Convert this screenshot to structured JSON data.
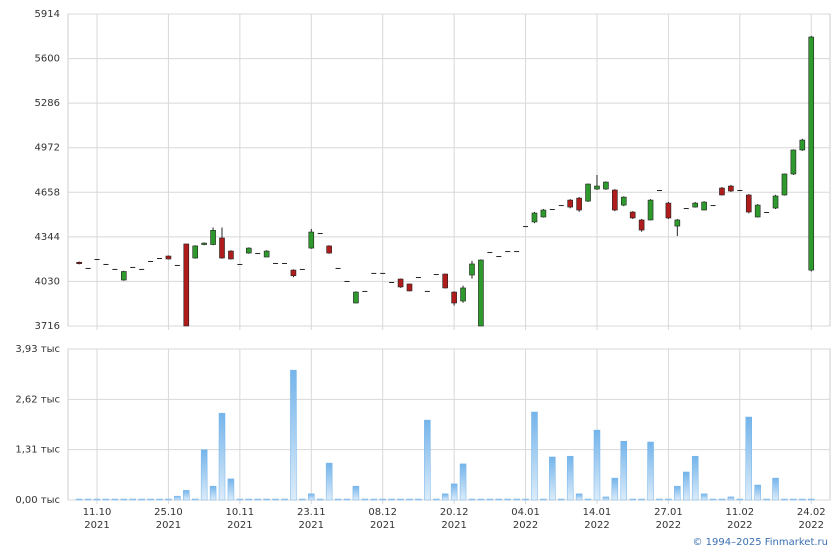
{
  "chart_data": {
    "type": "candlestick",
    "open": [
      4165,
      4125,
      4188,
      4153,
      4118,
      4040,
      4132,
      4118,
      4174,
      4195,
      4209,
      4146,
      4294,
      4195,
      4290,
      4290,
      4336,
      4244,
      4153,
      4230,
      4230,
      4202,
      4160,
      4160,
      4110,
      4118,
      4265,
      4371,
      4280,
      4125,
      4033,
      3878,
      3963,
      4090,
      4090,
      4026,
      4047,
      4012,
      4061,
      3963,
      4082,
      4082,
      3955,
      3892,
      4075,
      3716,
      4237,
      4209,
      4244,
      4244,
      4420,
      4449,
      4484,
      4540,
      4568,
      4603,
      4617,
      4596,
      4681,
      4681,
      4674,
      4568,
      4519,
      4463,
      4463,
      4674,
      4582,
      4420,
      4547,
      4554,
      4533,
      4568,
      4688,
      4702,
      4674,
      4639,
      4484,
      4519,
      4547,
      4639,
      4787,
      4956,
      4110
    ],
    "high": [
      4170,
      4125,
      4188,
      4153,
      4118,
      4105,
      4132,
      4118,
      4174,
      4195,
      4212,
      4146,
      4294,
      4285,
      4305,
      4410,
      4410,
      4250,
      4153,
      4270,
      4230,
      4250,
      4160,
      4160,
      4115,
      4118,
      4400,
      4371,
      4285,
      4125,
      4033,
      3960,
      3963,
      4090,
      4090,
      4026,
      4050,
      4015,
      4061,
      3963,
      4082,
      4085,
      3960,
      4000,
      4175,
      4185,
      4237,
      4209,
      4244,
      4244,
      4420,
      4520,
      4540,
      4540,
      4568,
      4610,
      4625,
      4720,
      4780,
      4735,
      4680,
      4630,
      4525,
      4470,
      4610,
      4674,
      4590,
      4470,
      4547,
      4590,
      4595,
      4568,
      4695,
      4710,
      4674,
      4645,
      4575,
      4519,
      4640,
      4790,
      4960,
      5035,
      5760
    ],
    "low": [
      4150,
      4125,
      4188,
      4153,
      4118,
      4035,
      4132,
      4118,
      4174,
      4195,
      4185,
      4146,
      3716,
      4190,
      4285,
      4285,
      4190,
      4185,
      4153,
      4225,
      4230,
      4200,
      4160,
      4160,
      4060,
      4118,
      4260,
      4371,
      4225,
      4125,
      4033,
      3875,
      3963,
      4090,
      4090,
      4026,
      3985,
      3960,
      4061,
      3963,
      4082,
      3980,
      3860,
      3880,
      4050,
      3716,
      4237,
      4209,
      4244,
      4244,
      4420,
      4440,
      4480,
      4540,
      4568,
      4545,
      4520,
      4590,
      4675,
      4675,
      4525,
      4560,
      4470,
      4380,
      4460,
      4674,
      4470,
      4350,
      4547,
      4550,
      4530,
      4568,
      4635,
      4660,
      4674,
      4510,
      4480,
      4519,
      4540,
      4635,
      4780,
      4950,
      4100
    ],
    "close": [
      4155,
      4125,
      4188,
      4153,
      4118,
      4100,
      4132,
      4118,
      4174,
      4195,
      4188,
      4146,
      3716,
      4280,
      4300,
      4390,
      4195,
      4188,
      4153,
      4265,
      4230,
      4244,
      4160,
      4160,
      4070,
      4118,
      4378,
      4371,
      4230,
      4125,
      4033,
      3955,
      3963,
      4090,
      4090,
      4026,
      3991,
      3963,
      4061,
      3963,
      4082,
      3984,
      3878,
      3984,
      4153,
      4181,
      4237,
      4209,
      4244,
      4244,
      4420,
      4512,
      4533,
      4540,
      4568,
      4554,
      4533,
      4716,
      4702,
      4730,
      4533,
      4624,
      4477,
      4392,
      4603,
      4674,
      4477,
      4463,
      4547,
      4582,
      4589,
      4568,
      4639,
      4667,
      4674,
      4519,
      4568,
      4519,
      4632,
      4787,
      4956,
      5026,
      5752
    ],
    "volume": [
      0,
      0,
      0,
      0,
      0,
      0,
      0,
      0,
      0,
      0,
      0,
      100,
      250,
      0,
      1310,
      360,
      2260,
      550,
      0,
      0,
      0,
      0,
      0,
      0,
      3380,
      0,
      160,
      0,
      960,
      0,
      0,
      360,
      0,
      0,
      0,
      0,
      0,
      0,
      0,
      2080,
      0,
      160,
      420,
      940,
      0,
      0,
      0,
      0,
      0,
      0,
      0,
      2290,
      0,
      1120,
      0,
      1140,
      160,
      0,
      1820,
      80,
      570,
      1530,
      0,
      0,
      1510,
      0,
      0,
      360,
      730,
      1140,
      160,
      0,
      0,
      80,
      0,
      2160,
      390,
      0,
      570,
      0,
      0,
      0,
      0
    ],
    "up_color": "#2e9a2e",
    "down_color": "#b01c1c",
    "volume_color": "#74b4ea",
    "xlim": [
      -1.25,
      84.1
    ],
    "xticks": [
      {
        "value": 2,
        "label": [
          "11.10",
          "2021"
        ]
      },
      {
        "value": 10,
        "label": [
          "25.10",
          "2021"
        ]
      },
      {
        "value": 18,
        "label": [
          "10.11",
          "2021"
        ]
      },
      {
        "value": 26,
        "label": [
          "23.11",
          "2021"
        ]
      },
      {
        "value": 34,
        "label": [
          "08.12",
          "2021"
        ]
      },
      {
        "value": 42,
        "label": [
          "20.12",
          "2021"
        ]
      },
      {
        "value": 50,
        "label": [
          "04.01",
          "2022"
        ]
      },
      {
        "value": 58,
        "label": [
          "14.01",
          "2022"
        ]
      },
      {
        "value": 66,
        "label": [
          "27.01",
          "2022"
        ]
      },
      {
        "value": 74,
        "label": [
          "11.02",
          "2022"
        ]
      },
      {
        "value": 82,
        "label": [
          "24.02",
          "2022"
        ]
      }
    ],
    "ylim": [
      3716,
      5914
    ],
    "yticks": [
      3716,
      4030,
      4344,
      4658,
      4972,
      5286,
      5600,
      5914
    ],
    "volume_ylim": [
      0,
      3930
    ],
    "volume_yticks": [
      {
        "value": 0,
        "label": "0,00 тыс"
      },
      {
        "value": 1310,
        "label": "1,31 тыс"
      },
      {
        "value": 2620,
        "label": "2,62 тыс"
      },
      {
        "value": 3930,
        "label": "3,93 тыс"
      }
    ],
    "grid": true,
    "footer": "© 1994–2025 Finmarket.ru"
  }
}
